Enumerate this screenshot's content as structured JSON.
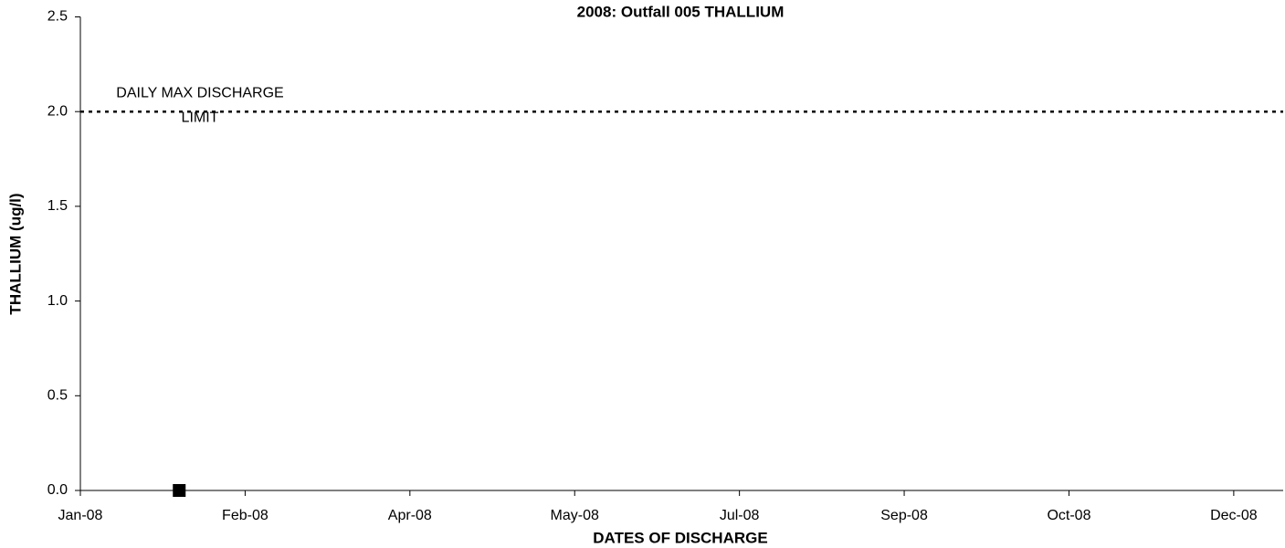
{
  "chart_data": {
    "type": "scatter",
    "title": "2008: Outfall 005 THALLIUM",
    "x_label": "DATES OF DISCHARGE",
    "y_label": "THALLIUM (ug/l)",
    "series": [
      {
        "color": "#000000",
        "marker": "square",
        "x": [
          "2008-01-31"
        ],
        "values": [
          0
        ]
      }
    ],
    "xlim": [
      "2008-01-01",
      "2008-12-31"
    ],
    "xticks": [
      {
        "value": "2008-01-01",
        "label": "Jan-08"
      },
      {
        "value": "2008-02-20",
        "label": "Feb-08"
      },
      {
        "value": "2008-04-10",
        "label": "Apr-08"
      },
      {
        "value": "2008-05-30",
        "label": "May-08"
      },
      {
        "value": "2008-07-19",
        "label": "Jul-08"
      },
      {
        "value": "2008-09-07",
        "label": "Sep-08"
      },
      {
        "value": "2008-10-27",
        "label": "Oct-08"
      },
      {
        "value": "2008-12-16",
        "label": "Dec-08"
      }
    ],
    "ylim": [
      0,
      2.5
    ],
    "yticks": [
      {
        "value": 0,
        "label": "0.0"
      },
      {
        "value": 0.5,
        "label": "0.5"
      },
      {
        "value": 1,
        "label": "1.0"
      },
      {
        "value": 1.5,
        "label": "1.5"
      },
      {
        "value": 2,
        "label": "2.0"
      },
      {
        "value": 2.5,
        "label": "2.5"
      }
    ],
    "reference_line": {
      "value": 2,
      "style": "dotted",
      "color": "#000000",
      "label": [
        "DAILY MAX DISCHARGE",
        "LIMIT"
      ]
    },
    "grid": false
  }
}
